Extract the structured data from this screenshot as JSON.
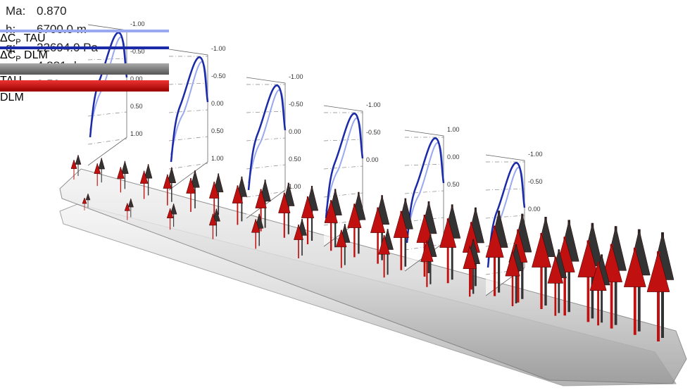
{
  "conditions": [
    {
      "key": "Ma:",
      "value": "0.870"
    },
    {
      "key": "h:",
      "value": "6700.0 m"
    },
    {
      "key": "q:",
      "value": "22694.0 Pa"
    },
    {
      "key": "α:",
      "value": "4.881 deg"
    },
    {
      "key": "n:",
      "value": "2.50 g"
    }
  ],
  "legend": [
    {
      "symbol": "ΔC",
      "sub": "P",
      "text": "TAU"
    },
    {
      "symbol": "ΔC",
      "sub": "P",
      "text": "DLM"
    },
    {
      "text": "TAU"
    },
    {
      "text": "DLM"
    }
  ],
  "panels": [
    {
      "ticks": [
        "-1.00",
        "-0.50",
        "0.00",
        "0.50",
        "1.00"
      ]
    },
    {
      "ticks": [
        "-1.00",
        "-0.50",
        "0.00",
        "0.50",
        "1.00"
      ]
    },
    {
      "ticks": [
        "-1.00",
        "-0.50",
        "0.00",
        "0.50",
        "1.00"
      ]
    },
    {
      "ticks": [
        "-1.00",
        "-0.50",
        "0.00"
      ]
    },
    {
      "ticks": [
        "1.00",
        "0.00",
        "0.50"
      ]
    },
    {
      "ticks": [
        "-1.00",
        "-0.50",
        "0.00"
      ]
    }
  ]
}
